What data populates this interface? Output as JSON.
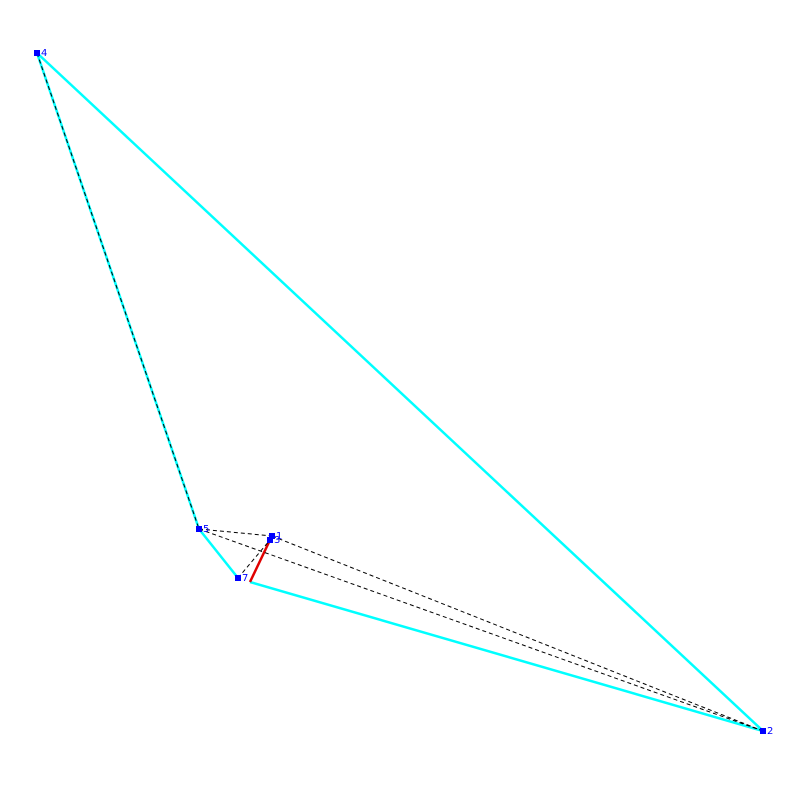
{
  "nodes": [
    {
      "label": "4"
    },
    {
      "label": "5"
    },
    {
      "label": "1"
    },
    {
      "label": "3"
    },
    {
      "label": "7"
    },
    {
      "label": "2"
    }
  ]
}
